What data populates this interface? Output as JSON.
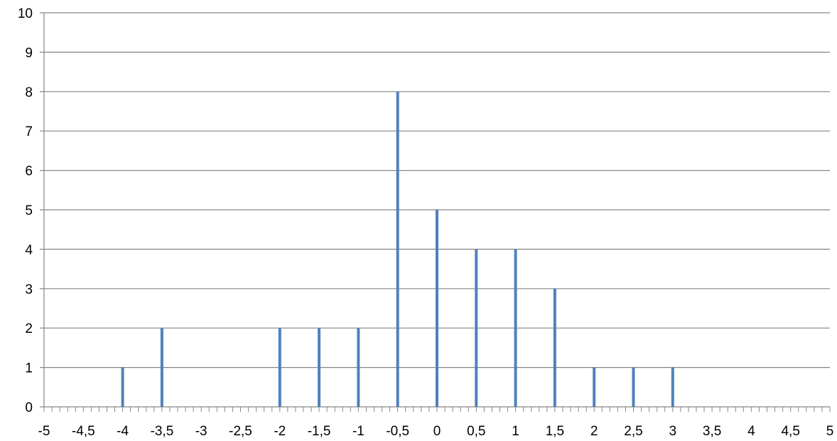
{
  "chart_data": {
    "type": "bar",
    "title": "",
    "xlabel": "",
    "ylabel": "",
    "xlim": [
      -5,
      5
    ],
    "ylim": [
      0,
      10
    ],
    "grid": true,
    "legend": "none",
    "x_tick_labels": [
      "-5",
      "-4,5",
      "-4",
      "-3,5",
      "-3",
      "-2,5",
      "-2",
      "-1,5",
      "-1",
      "-0,5",
      "0",
      "0,5",
      "1",
      "1,5",
      "2",
      "2,5",
      "3",
      "3,5",
      "4",
      "4,5",
      "5"
    ],
    "y_tick_labels": [
      "0",
      "1",
      "2",
      "3",
      "4",
      "5",
      "6",
      "7",
      "8",
      "9",
      "10"
    ],
    "series": [
      {
        "color": "#4f81bd",
        "points": [
          {
            "x": -4,
            "y": 1
          },
          {
            "x": -3.5,
            "y": 2
          },
          {
            "x": -2,
            "y": 2
          },
          {
            "x": -1.5,
            "y": 2
          },
          {
            "x": -1,
            "y": 2
          },
          {
            "x": -0.5,
            "y": 8
          },
          {
            "x": 0,
            "y": 5
          },
          {
            "x": 0.5,
            "y": 4
          },
          {
            "x": 1,
            "y": 4
          },
          {
            "x": 1.5,
            "y": 3
          },
          {
            "x": 2,
            "y": 1
          },
          {
            "x": 2.5,
            "y": 1
          },
          {
            "x": 3,
            "y": 1
          }
        ]
      }
    ]
  }
}
